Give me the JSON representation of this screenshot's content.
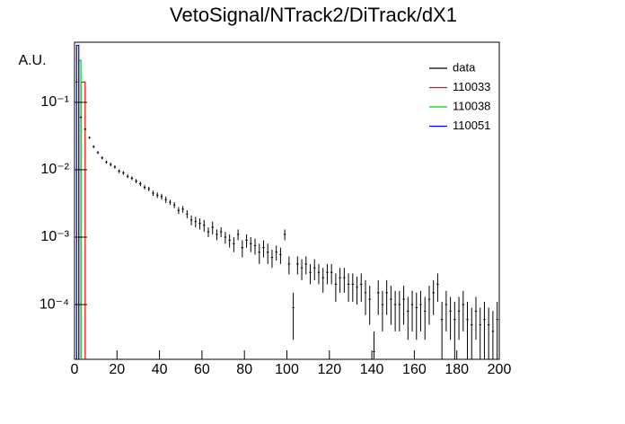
{
  "chart_data": {
    "type": "hist_errorbar",
    "title": "VetoSignal/NTrack2/DiTrack/dX1",
    "ylabel": "A.U.",
    "log_y": true,
    "xlim": [
      0,
      200
    ],
    "xticks": [
      0,
      20,
      40,
      60,
      80,
      100,
      120,
      140,
      160,
      180,
      200
    ],
    "ylim": [
      1.54e-05,
      0.78
    ],
    "yticks": [
      {
        "value": 0.1,
        "label": "10⁻¹"
      },
      {
        "value": 0.01,
        "label": "10⁻²"
      },
      {
        "value": 0.001,
        "label": "10⁻³"
      },
      {
        "value": 0.0001,
        "label": "10⁻⁴"
      }
    ],
    "legend": "top-right",
    "data": {
      "name": "data",
      "color": "#000000",
      "x": [
        1,
        3,
        5,
        7,
        9,
        11,
        13,
        15,
        17,
        19,
        21,
        23,
        25,
        27,
        29,
        31,
        33,
        35,
        37,
        39,
        41,
        43,
        45,
        47,
        49,
        51,
        53,
        55,
        57,
        59,
        61,
        63,
        65,
        67,
        69,
        71,
        73,
        75,
        77,
        79,
        81,
        83,
        85,
        87,
        89,
        91,
        93,
        95,
        97,
        99,
        101,
        103,
        105,
        107,
        109,
        111,
        113,
        115,
        117,
        119,
        121,
        123,
        125,
        127,
        129,
        131,
        133,
        135,
        137,
        139,
        141,
        143,
        145,
        147,
        149,
        151,
        153,
        155,
        157,
        159,
        161,
        163,
        165,
        167,
        169,
        171,
        173,
        175,
        177,
        179,
        181,
        183,
        185,
        187,
        189,
        191,
        193,
        195,
        197,
        199
      ],
      "values": [
        0.2,
        0.06,
        0.04,
        0.03,
        0.022,
        0.018,
        0.015,
        0.013,
        0.012,
        0.011,
        0.0095,
        0.009,
        0.008,
        0.0075,
        0.0068,
        0.0062,
        0.0055,
        0.0052,
        0.0045,
        0.0042,
        0.004,
        0.0036,
        0.0033,
        0.003,
        0.0025,
        0.0026,
        0.0022,
        0.0018,
        0.0017,
        0.0016,
        0.0015,
        0.0012,
        0.0014,
        0.0011,
        0.0012,
        0.001,
        0.0009,
        0.0008,
        0.0011,
        0.0007,
        0.0009,
        0.0008,
        0.00075,
        0.0006,
        0.0007,
        0.0006,
        0.0005,
        0.0006,
        0.00055,
        0.0011,
        0.0004,
        9e-05,
        0.0004,
        0.00035,
        0.0004,
        0.0003,
        0.00035,
        0.0003,
        0.00025,
        0.0003,
        0.0003,
        0.0002,
        0.00025,
        0.00025,
        0.0002,
        0.0002,
        0.00018,
        0.0002,
        0.00015,
        0.00012,
        2e-05,
        0.00015,
        0.0001,
        0.00015,
        0.00012,
        0.0001,
        0.0001,
        0.00012,
        8e-05,
        0.0001,
        9e-05,
        0.0001,
        8e-05,
        0.00012,
        0.00015,
        0.0002,
        6e-05,
        0.0001,
        8e-05,
        6e-05,
        8e-05,
        0.0001,
        6e-05,
        5e-05,
        8e-05,
        5e-05,
        6e-05,
        5e-05,
        4e-05,
        6e-05
      ],
      "errors": [
        0.004,
        0.002,
        0.0015,
        0.0012,
        0.001,
        0.0009,
        0.0008,
        0.0007,
        0.0007,
        0.0006,
        0.0006,
        0.0006,
        0.0005,
        0.0005,
        0.0005,
        0.0005,
        0.0004,
        0.0004,
        0.0004,
        0.0004,
        0.0004,
        0.0004,
        0.0003,
        0.0003,
        0.0003,
        0.0003,
        0.0003,
        0.0003,
        0.0003,
        0.0003,
        0.0003,
        0.0002,
        0.0003,
        0.0002,
        0.0002,
        0.0002,
        0.0002,
        0.0002,
        0.0002,
        0.0002,
        0.0002,
        0.0002,
        0.0002,
        0.0002,
        0.0002,
        0.0002,
        0.00015,
        0.00015,
        0.00015,
        0.0002,
        0.00012,
        6e-05,
        0.00012,
        0.00012,
        0.00012,
        0.0001,
        0.00012,
        0.0001,
        0.0001,
        0.0001,
        0.0001,
        9e-05,
        0.0001,
        0.0001,
        9e-05,
        9e-05,
        8e-05,
        9e-05,
        8e-05,
        7e-05,
        2e-05,
        8e-05,
        6e-05,
        8e-05,
        7e-05,
        6e-05,
        6e-05,
        7e-05,
        5e-05,
        6e-05,
        6e-05,
        6e-05,
        5e-05,
        7e-05,
        8e-05,
        9e-05,
        5e-05,
        6e-05,
        5e-05,
        5e-05,
        5e-05,
        6e-05,
        5e-05,
        4e-05,
        5e-05,
        4e-05,
        5e-05,
        4e-05,
        4e-05,
        5e-05
      ]
    },
    "series": [
      {
        "name": "110033",
        "color": "#ff0000",
        "bins": [
          3,
          5
        ],
        "values": [
          0.2
        ]
      },
      {
        "name": "110038",
        "color": "#00cc00",
        "bins": [
          2,
          3
        ],
        "values": [
          0.42
        ]
      },
      {
        "name": "110051",
        "color": "#0000ff",
        "bins": [
          1,
          2
        ],
        "values": [
          0.7
        ]
      }
    ]
  }
}
